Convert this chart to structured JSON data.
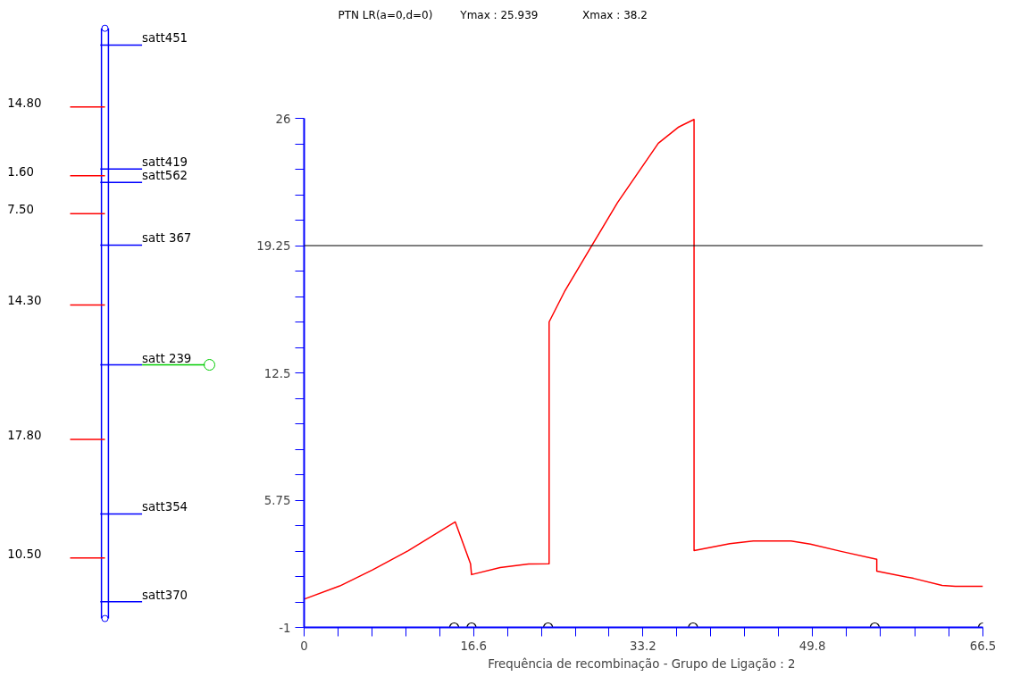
{
  "chart_data": [
    {
      "type": "other",
      "color": "#0000ff",
      "categories": [
        "satt451",
        "satt419",
        "satt562",
        "satt 367",
        "satt 239",
        "satt354",
        "satt370"
      ],
      "colors": [
        "#0000ff",
        "#0000ff",
        "#0000ff",
        "#0000ff",
        "#00cc00",
        "#0000ff",
        "#0000ff"
      ],
      "values": [
        null,
        14.8,
        1.6,
        7.5,
        14.3,
        17.8,
        10.5
      ],
      "value_labels": [
        null,
        "14.80",
        "1.60",
        "7.50",
        "14.30",
        "17.80",
        "10.50"
      ]
    },
    {
      "type": "line",
      "title": "PTN  LR(a=0,d=0)",
      "annotations": [
        "Ymax :  25.939",
        "Xmax :  38.2"
      ],
      "xlabel": "Frequência de recombinação - Grupo de Ligação :  2",
      "xlim": [
        0,
        66.5
      ],
      "ylim": [
        -1,
        26
      ],
      "xticks": [
        0,
        {
          "value": 3.32,
          "label": null
        },
        {
          "value": 6.64,
          "label": null
        },
        {
          "value": 9.96,
          "label": null
        },
        {
          "value": 13.28,
          "label": null
        },
        16.6,
        {
          "value": 19.92,
          "label": null
        },
        {
          "value": 23.24,
          "label": null
        },
        {
          "value": 26.56,
          "label": null
        },
        {
          "value": 29.88,
          "label": null
        },
        33.2,
        {
          "value": 36.52,
          "label": null
        },
        {
          "value": 39.84,
          "label": null
        },
        {
          "value": 43.16,
          "label": null
        },
        {
          "value": 46.48,
          "label": null
        },
        49.8,
        {
          "value": 53.14,
          "label": null
        },
        {
          "value": 56.48,
          "label": null
        },
        {
          "value": 59.82,
          "label": null
        },
        {
          "value": 63.16,
          "label": null
        },
        66.5
      ],
      "yticks": [
        -1,
        {
          "value": 0.35,
          "label": null
        },
        {
          "value": 1.7,
          "label": null
        },
        {
          "value": 3.05,
          "label": null
        },
        {
          "value": 4.4,
          "label": null
        },
        5.75,
        {
          "value": 7.1,
          "label": null
        },
        {
          "value": 8.45,
          "label": null
        },
        {
          "value": 9.8,
          "label": null
        },
        {
          "value": 11.15,
          "label": null
        },
        12.5,
        {
          "value": 13.85,
          "label": null
        },
        {
          "value": 15.2,
          "label": null
        },
        {
          "value": 16.55,
          "label": null
        },
        {
          "value": 17.9,
          "label": null
        },
        19.25,
        {
          "value": 20.6,
          "label": null
        },
        {
          "value": 21.95,
          "label": null
        },
        {
          "value": 23.3,
          "label": null
        },
        {
          "value": 24.65,
          "label": null
        },
        26
      ],
      "grid": false,
      "ref_lines": [
        {
          "axis": "y",
          "value": 19.25,
          "color": "#000000"
        }
      ],
      "series": [
        {
          "type": "line",
          "color": "#ff0000",
          "marker": "none",
          "x": [
            0,
            3.5,
            6.7,
            10.2,
            14.8,
            16.3,
            16.4,
            19.2,
            22.0,
            24.0,
            24.0,
            25.5,
            28.1,
            30.7,
            33.0,
            34.7,
            36.7,
            38.2,
            38.2,
            41.7,
            44.0,
            47.7,
            49.6,
            52.7,
            56.1,
            56.1,
            59.7,
            62.5,
            63.8,
            66.5
          ],
          "values": [
            0.5,
            1.2,
            2.05,
            3.07,
            4.6,
            2.38,
            1.8,
            2.17,
            2.36,
            2.38,
            15.2,
            16.8,
            19.17,
            21.53,
            23.34,
            24.68,
            25.54,
            25.94,
            3.07,
            3.44,
            3.58,
            3.58,
            3.42,
            3.02,
            2.61,
            1.98,
            1.6,
            1.23,
            1.18,
            1.18
          ]
        },
        {
          "type": "scatter",
          "color": "#000000",
          "marker": "circle",
          "x": [
            14.7,
            16.4,
            23.9,
            38.1,
            55.9,
            66.5
          ],
          "values": [
            -1,
            -1,
            -1,
            -1,
            -1,
            -1
          ]
        }
      ]
    }
  ]
}
